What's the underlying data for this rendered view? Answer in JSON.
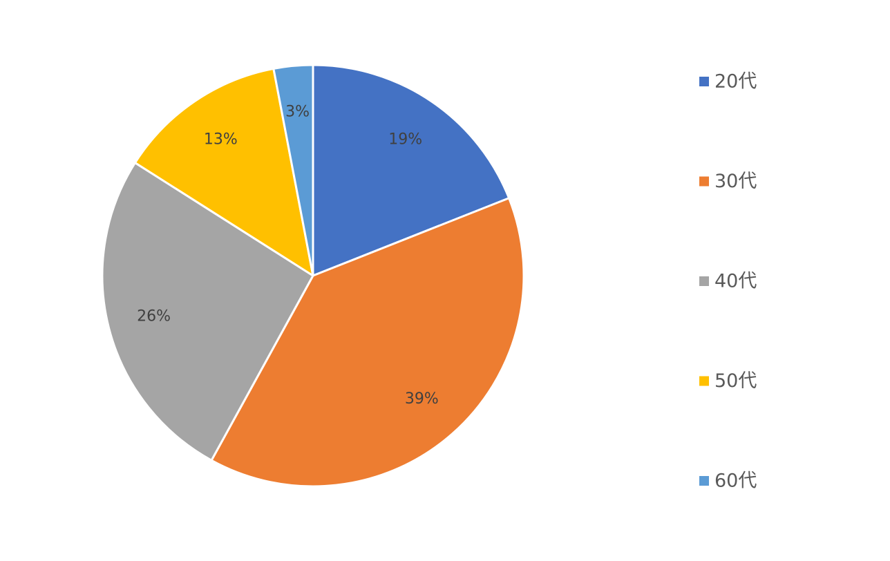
{
  "chart_data": {
    "type": "pie",
    "categories": [
      "20代",
      "30代",
      "40代",
      "50代",
      "60代"
    ],
    "values": [
      19,
      39,
      26,
      13,
      3
    ],
    "data_labels": [
      "19%",
      "39%",
      "26%",
      "13%",
      "3%"
    ],
    "colors": [
      "#4472C4",
      "#ED7D31",
      "#A5A5A5",
      "#FFC000",
      "#5B9BD5"
    ],
    "start_angle_deg": 0,
    "direction": "clockwise",
    "legend": {
      "position": "right"
    },
    "title": ""
  }
}
